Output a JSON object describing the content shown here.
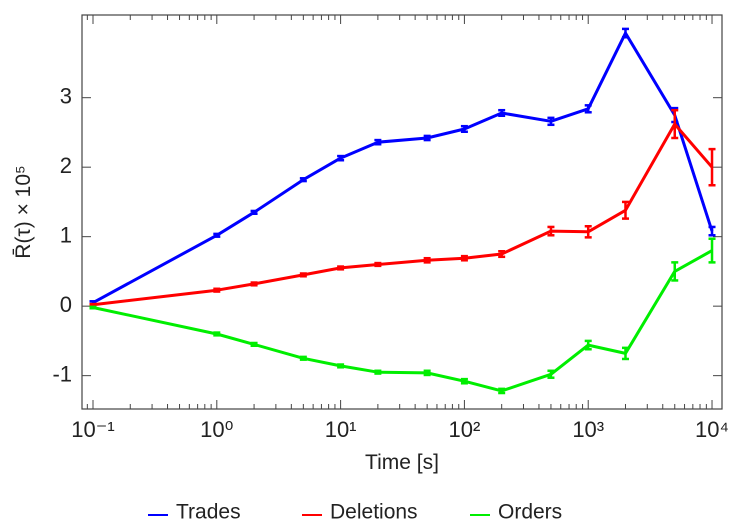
{
  "chart_data": {
    "type": "line",
    "x_label": "Time [s]",
    "y_label": "R̄(τ) × 10⁵",
    "x_scale": "log",
    "x": [
      0.1,
      1,
      2,
      5,
      10,
      20,
      50,
      100,
      200,
      500,
      1000,
      2000,
      5000,
      10000
    ],
    "series": [
      {
        "name": "Trades",
        "color": "#0000ff",
        "values": [
          0.05,
          1.02,
          1.35,
          1.82,
          2.13,
          2.36,
          2.42,
          2.55,
          2.78,
          2.66,
          2.84,
          3.93,
          2.75,
          1.08
        ],
        "errors": [
          0.02,
          0.02,
          0.02,
          0.02,
          0.03,
          0.03,
          0.03,
          0.04,
          0.04,
          0.05,
          0.05,
          0.06,
          0.1,
          0.06
        ]
      },
      {
        "name": "Deletions",
        "color": "#ff0000",
        "values": [
          0.02,
          0.23,
          0.32,
          0.45,
          0.55,
          0.6,
          0.66,
          0.69,
          0.75,
          1.08,
          1.07,
          1.38,
          2.62,
          2.0
        ],
        "errors": [
          0.01,
          0.02,
          0.02,
          0.02,
          0.02,
          0.02,
          0.03,
          0.03,
          0.04,
          0.06,
          0.08,
          0.12,
          0.2,
          0.26
        ]
      },
      {
        "name": "Orders",
        "color": "#00ee00",
        "values": [
          -0.02,
          -0.4,
          -0.55,
          -0.75,
          -0.86,
          -0.95,
          -0.96,
          -1.08,
          -1.22,
          -0.98,
          -0.56,
          -0.68,
          0.5,
          0.8
        ],
        "errors": [
          0.01,
          0.02,
          0.02,
          0.02,
          0.02,
          0.02,
          0.03,
          0.03,
          0.03,
          0.05,
          0.06,
          0.08,
          0.13,
          0.17
        ]
      }
    ],
    "xlim": [
      0.0815,
      12040
    ],
    "xticks": [
      {
        "value": 0.1,
        "label": "10⁻¹"
      },
      {
        "value": 1,
        "label": "10⁰"
      },
      {
        "value": 10,
        "label": "10¹"
      },
      {
        "value": 100,
        "label": "10²"
      },
      {
        "value": 1000,
        "label": "10³"
      },
      {
        "value": 10000,
        "label": "10⁴"
      }
    ],
    "ylim": [
      -1.48,
      4.19
    ],
    "yticks": [
      -1,
      0,
      1,
      2,
      3
    ],
    "legend": "bottom"
  }
}
